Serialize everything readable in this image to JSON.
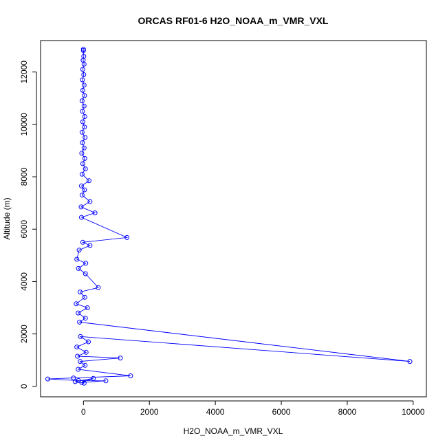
{
  "chart_data": {
    "type": "line",
    "title": "ORCAS RF01-6 H2O_NOAA_m_VMR_VXL",
    "xlabel": "H2O_NOAA_m_VMR_VXL",
    "ylabel": "Altitude (m)",
    "xlim": [
      -1300,
      10400
    ],
    "ylim": [
      -400,
      13200
    ],
    "xticks": [
      0,
      2000,
      4000,
      6000,
      8000,
      10000
    ],
    "xtick_labels": [
      "0",
      "2000",
      "4000",
      "6000",
      "8000",
      "10000"
    ],
    "yticks": [
      0,
      2000,
      4000,
      6000,
      8000,
      10000,
      12000
    ],
    "ytick_labels": [
      "0",
      "2000",
      "4000",
      "6000",
      "8000",
      "10000",
      "12000"
    ],
    "grid": false,
    "marker": "open-circle",
    "colors": {
      "series": "#0000ff",
      "axes": "#000000",
      "background": "#ffffff"
    },
    "series": [
      {
        "points": [
          [
            0,
            12870
          ],
          [
            0,
            12820
          ],
          [
            10,
            12600
          ],
          [
            -10,
            12450
          ],
          [
            20,
            12300
          ],
          [
            -20,
            12100
          ],
          [
            10,
            11900
          ],
          [
            -30,
            11700
          ],
          [
            20,
            11500
          ],
          [
            -20,
            11300
          ],
          [
            30,
            11100
          ],
          [
            -40,
            10900
          ],
          [
            20,
            10700
          ],
          [
            -30,
            10500
          ],
          [
            40,
            10300
          ],
          [
            -20,
            10100
          ],
          [
            30,
            9900
          ],
          [
            -40,
            9700
          ],
          [
            50,
            9500
          ],
          [
            -30,
            9300
          ],
          [
            20,
            9100
          ],
          [
            -50,
            8900
          ],
          [
            40,
            8700
          ],
          [
            -20,
            8500
          ],
          [
            60,
            8300
          ],
          [
            -40,
            8100
          ],
          [
            170,
            7850
          ],
          [
            -60,
            7650
          ],
          [
            30,
            7500
          ],
          [
            -40,
            7300
          ],
          [
            200,
            7050
          ],
          [
            -70,
            6850
          ],
          [
            350,
            6620
          ],
          [
            -60,
            6450
          ],
          [
            1320,
            5680
          ],
          [
            -20,
            5500
          ],
          [
            200,
            5380
          ],
          [
            -130,
            5200
          ],
          [
            -200,
            4850
          ],
          [
            70,
            4700
          ],
          [
            -150,
            4500
          ],
          [
            60,
            4300
          ],
          [
            450,
            3770
          ],
          [
            -100,
            3600
          ],
          [
            40,
            3400
          ],
          [
            -220,
            3150
          ],
          [
            120,
            3000
          ],
          [
            -160,
            2800
          ],
          [
            60,
            2600
          ],
          [
            -120,
            2450
          ],
          [
            9900,
            950
          ],
          [
            -90,
            1900
          ],
          [
            150,
            1700
          ],
          [
            -200,
            1500
          ],
          [
            80,
            1300
          ],
          [
            -180,
            1150
          ],
          [
            1120,
            1080
          ],
          [
            -100,
            950
          ],
          [
            50,
            800
          ],
          [
            -160,
            650
          ],
          [
            1430,
            400
          ],
          [
            -300,
            320
          ],
          [
            -1080,
            280
          ],
          [
            -150,
            220
          ],
          [
            680,
            210
          ],
          [
            -50,
            150
          ],
          [
            300,
            300
          ],
          [
            -250,
            180
          ],
          [
            20,
            120
          ]
        ]
      }
    ]
  }
}
